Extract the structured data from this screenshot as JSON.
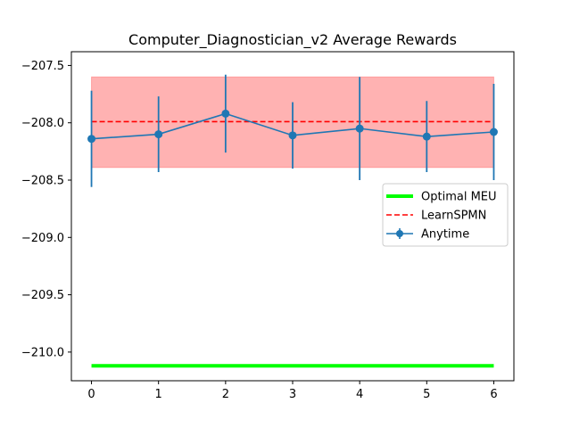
{
  "chart_data": {
    "type": "line",
    "title": "Computer_Diagnostician_v2 Average Rewards",
    "xlabel": "",
    "ylabel": "",
    "x": [
      0,
      1,
      2,
      3,
      4,
      5,
      6
    ],
    "xticks": [
      0,
      1,
      2,
      3,
      4,
      5,
      6
    ],
    "xlim": [
      -0.3,
      6.3
    ],
    "yticks": [
      -207.5,
      -208.0,
      -208.5,
      -209.0,
      -209.5,
      -210.0
    ],
    "ytick_labels": [
      "−207.5",
      "−208.0",
      "−208.5",
      "−209.0",
      "−209.5",
      "−210.0"
    ],
    "ylim": [
      -210.25,
      -207.38
    ],
    "grid": false,
    "legend_position": "center-right",
    "series": [
      {
        "name": "Optimal MEU",
        "kind": "line",
        "color": "#00ff00",
        "values": [
          -210.12,
          -210.12,
          -210.12,
          -210.12,
          -210.12,
          -210.12,
          -210.12
        ]
      },
      {
        "name": "LearnSPMN",
        "kind": "dashed-line",
        "color": "#ff0000",
        "values": [
          -207.99,
          -207.99,
          -207.99,
          -207.99,
          -207.99,
          -207.99,
          -207.99
        ],
        "band": {
          "low": -208.39,
          "high": -207.6,
          "color": "#ff0000",
          "opacity": 0.3
        }
      },
      {
        "name": "Anytime",
        "kind": "errorbar",
        "color": "#1f77b4",
        "values": [
          -208.14,
          -208.1,
          -207.92,
          -208.11,
          -208.05,
          -208.12,
          -208.08
        ],
        "errors": [
          0.42,
          0.33,
          0.34,
          0.29,
          0.45,
          0.31,
          0.42
        ]
      }
    ]
  }
}
